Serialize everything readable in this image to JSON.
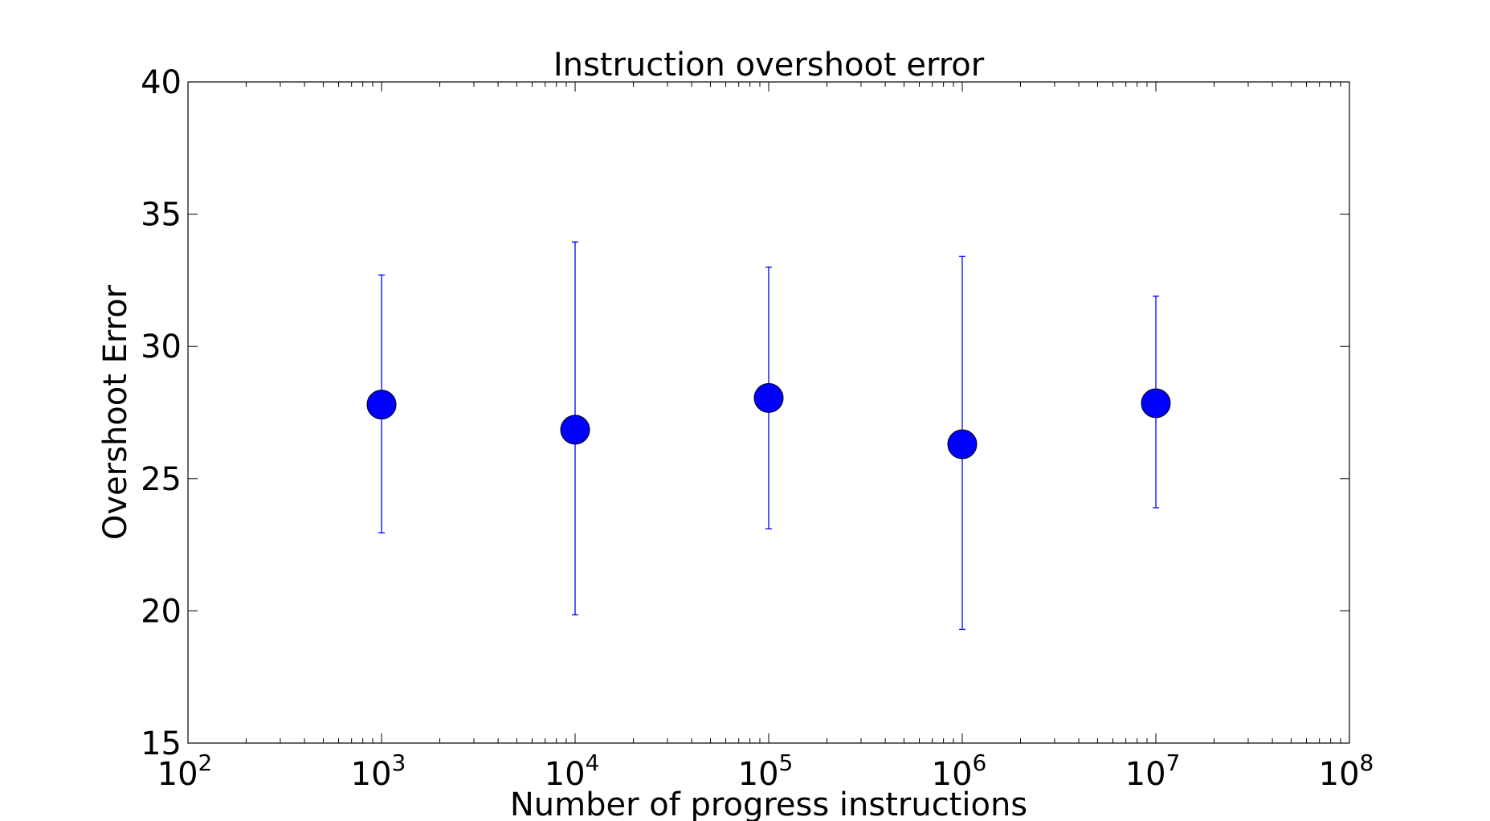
{
  "chart_data": {
    "type": "scatter",
    "title": "Instruction overshoot error",
    "xlabel": "Number of progress instructions",
    "ylabel": "Overshoot Error",
    "x_scale": "log",
    "xlim": [
      100,
      100000000
    ],
    "ylim": [
      15,
      40
    ],
    "x_ticks": [
      {
        "base": "10",
        "exp": "2",
        "value": 100
      },
      {
        "base": "10",
        "exp": "3",
        "value": 1000
      },
      {
        "base": "10",
        "exp": "4",
        "value": 10000
      },
      {
        "base": "10",
        "exp": "5",
        "value": 100000
      },
      {
        "base": "10",
        "exp": "6",
        "value": 1000000
      },
      {
        "base": "10",
        "exp": "7",
        "value": 10000000
      },
      {
        "base": "10",
        "exp": "8",
        "value": 100000000
      }
    ],
    "y_ticks": [
      "15",
      "20",
      "25",
      "30",
      "35",
      "40"
    ],
    "grid": false,
    "series": [
      {
        "color": "#0000ff",
        "points": [
          {
            "x": 1000,
            "y": 27.8,
            "err_low": 22.95,
            "err_high": 32.7
          },
          {
            "x": 10000,
            "y": 26.85,
            "err_low": 19.85,
            "err_high": 33.95
          },
          {
            "x": 100000,
            "y": 28.05,
            "err_low": 23.1,
            "err_high": 33.0
          },
          {
            "x": 1000000,
            "y": 26.3,
            "err_low": 19.3,
            "err_high": 33.4
          },
          {
            "x": 10000000,
            "y": 27.85,
            "err_low": 23.9,
            "err_high": 31.9
          }
        ]
      }
    ]
  }
}
